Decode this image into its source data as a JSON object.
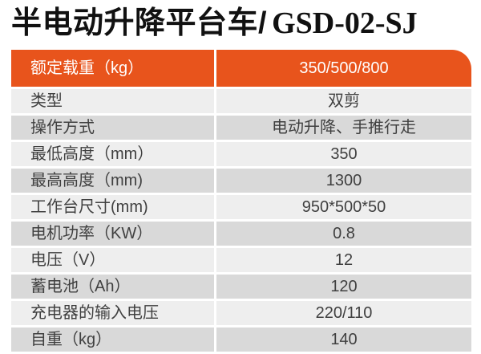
{
  "page": {
    "title_cn": "半电动升降平台车/",
    "title_model": "GSD-02-SJ"
  },
  "table": {
    "header": {
      "label": "额定载重（kg）",
      "value": "350/500/800"
    },
    "rows": [
      {
        "label": "类型",
        "value": "双剪"
      },
      {
        "label": "操作方式",
        "value": "电动升降、手推行走"
      },
      {
        "label": "最低高度（mm）",
        "value": "350"
      },
      {
        "label": "最高高度（mm)",
        "value": "1300"
      },
      {
        "label": "工作台尺寸(mm)",
        "value": "950*500*50"
      },
      {
        "label": "电机功率（KW）",
        "value": "0.8"
      },
      {
        "label": "电压（V）",
        "value": "12"
      },
      {
        "label": "蓄电池（Ah）",
        "value": "120"
      },
      {
        "label": "充电器的输入电压",
        "value": "220/110"
      },
      {
        "label": "自重（kg）",
        "value": "140"
      }
    ]
  },
  "colors": {
    "accent_orange": "#e8541c",
    "row_light": "#eeeeee",
    "row_dark": "#d9d9d9",
    "header_text": "#ffffff",
    "body_text": "#404040"
  }
}
